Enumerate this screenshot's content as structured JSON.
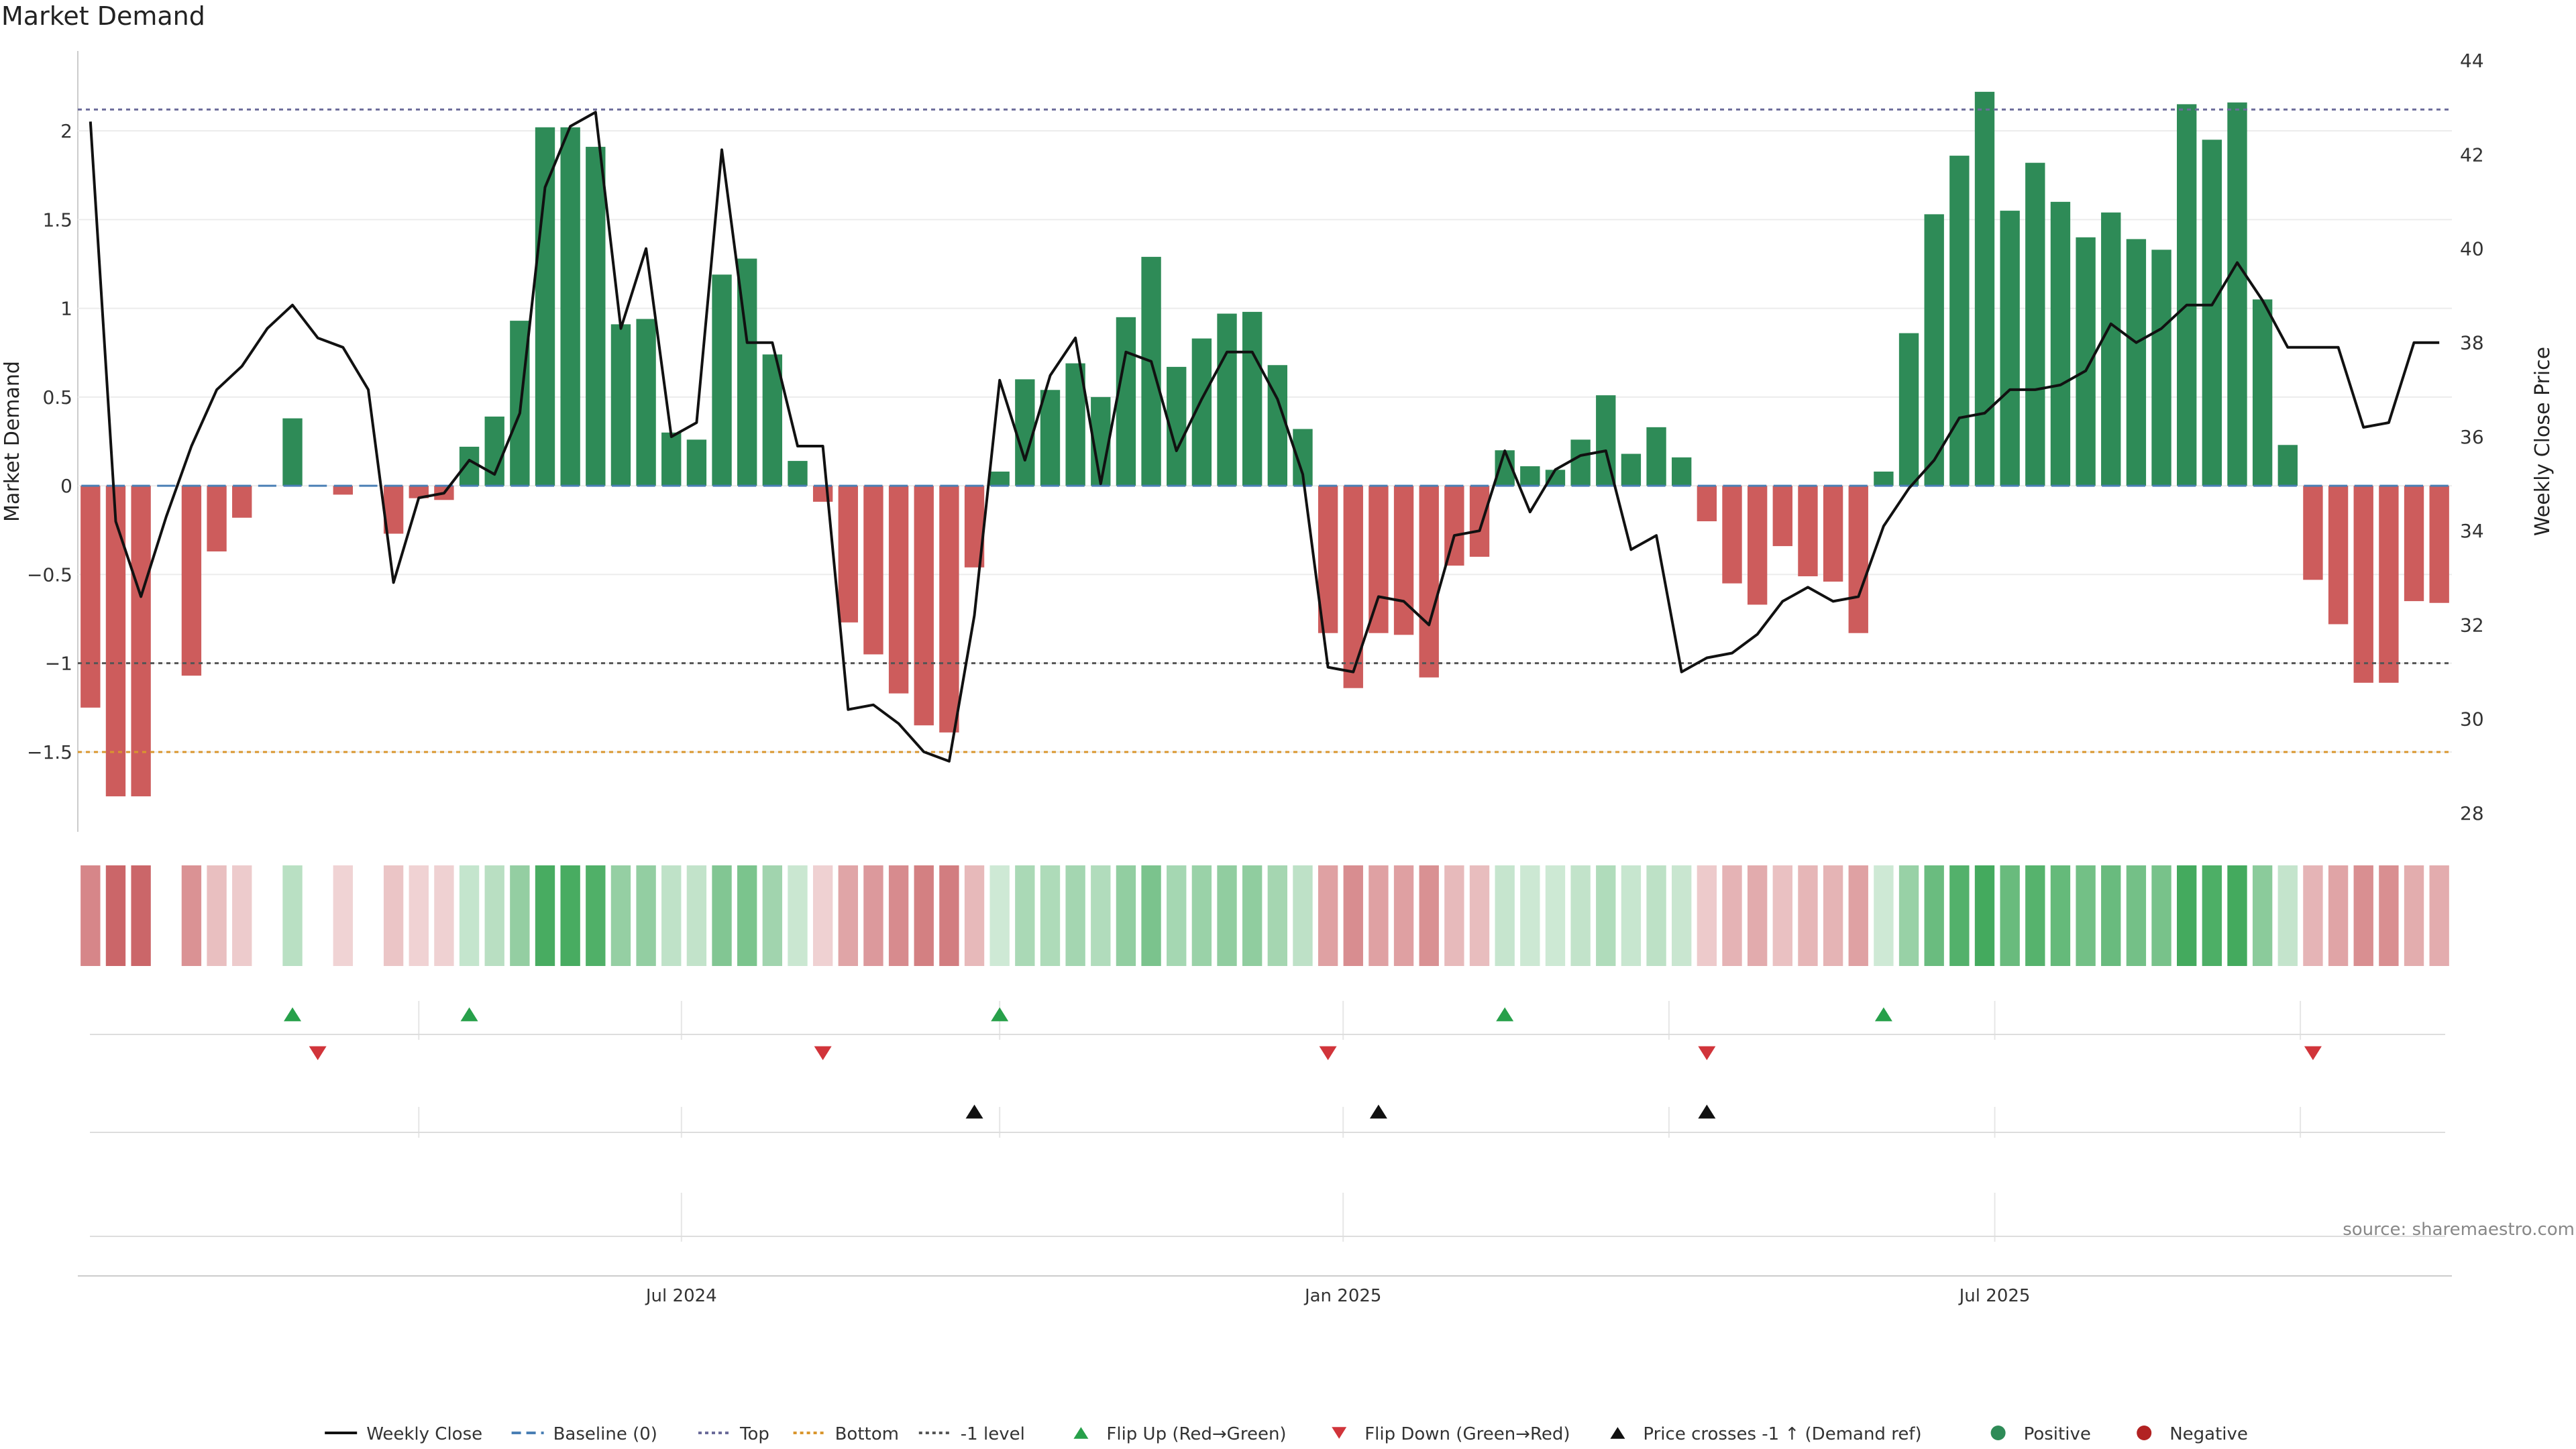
{
  "chart_data": {
    "type": "bar",
    "title": "Market Demand",
    "ylabel": "Market Demand",
    "y2label": "Weekly Close Price",
    "ylim": [
      -1.95,
      2.45
    ],
    "y2lim": [
      27.6,
      44.2
    ],
    "yticks": [
      "2",
      "1.5",
      "1",
      "0.5",
      "0",
      "−0.5",
      "−1",
      "−1.5"
    ],
    "ytick_values": [
      2,
      1.5,
      1,
      0.5,
      0,
      -0.5,
      -1,
      -1.5
    ],
    "y2ticks": [
      "44",
      "42",
      "40",
      "38",
      "36",
      "34",
      "32",
      "30",
      "28"
    ],
    "y2tick_values": [
      44,
      42,
      40,
      38,
      36,
      34,
      32,
      30,
      28
    ],
    "xticks": [
      "Jul 2024",
      "Jan 2025",
      "Jul 2025"
    ],
    "xtick_weeks": [
      23.4,
      49.6,
      75.4
    ],
    "reference_lines": [
      {
        "name": "Top",
        "value": 2.12,
        "color": "#6b6b9a"
      },
      {
        "name": "Bottom",
        "value": -1.5,
        "color": "#d9962e"
      },
      {
        "name": "-1 level",
        "value": -1.0,
        "color": "#555555"
      }
    ],
    "demand": [
      -1.25,
      -1.75,
      -1.75,
      0,
      -1.07,
      -0.37,
      -0.18,
      0,
      0.38,
      0,
      -0.05,
      0,
      -0.27,
      -0.07,
      -0.08,
      0.22,
      0.39,
      0.93,
      2.02,
      2.02,
      1.91,
      0.91,
      0.94,
      0.3,
      0.26,
      1.19,
      1.28,
      0.74,
      0.14,
      -0.09,
      -0.77,
      -0.95,
      -1.17,
      -1.35,
      -1.39,
      -0.46,
      0.08,
      0.6,
      0.54,
      0.69,
      0.5,
      0.95,
      1.29,
      0.67,
      0.83,
      0.97,
      0.98,
      0.68,
      0.32,
      -0.83,
      -1.14,
      -0.83,
      -0.84,
      -1.08,
      -0.45,
      -0.4,
      0.2,
      0.11,
      0.09,
      0.26,
      0.51,
      0.18,
      0.33,
      0.16,
      -0.2,
      -0.55,
      -0.67,
      -0.34,
      -0.51,
      -0.54,
      -0.83,
      0.08,
      0.86,
      1.53,
      1.86,
      2.22,
      1.55,
      1.82,
      1.6,
      1.4,
      1.54,
      1.39,
      1.33,
      2.15,
      1.95,
      2.16,
      1.05,
      0.23,
      -0.53,
      -0.78,
      -1.11,
      -1.11,
      -0.65,
      -0.66
    ],
    "price": [
      42.7,
      34.2,
      32.6,
      34.3,
      35.8,
      37.0,
      37.5,
      38.3,
      38.8,
      38.1,
      37.9,
      37.0,
      32.9,
      34.7,
      34.8,
      35.5,
      35.2,
      36.5,
      41.3,
      42.6,
      42.9,
      38.3,
      40.0,
      36.0,
      36.3,
      42.1,
      38.0,
      38.0,
      35.8,
      35.8,
      30.2,
      30.3,
      29.9,
      29.3,
      29.1,
      32.2,
      37.2,
      35.5,
      37.3,
      38.1,
      35.0,
      37.8,
      37.6,
      35.7,
      36.8,
      37.8,
      37.8,
      36.8,
      35.2,
      31.1,
      31.0,
      32.6,
      32.5,
      32.0,
      33.9,
      34.0,
      35.7,
      34.4,
      35.3,
      35.6,
      35.7,
      33.6,
      33.9,
      31.0,
      31.3,
      31.4,
      31.8,
      32.5,
      32.8,
      32.5,
      32.6,
      34.1,
      34.9,
      35.5,
      36.4,
      36.5,
      37.0,
      37.0,
      37.1,
      37.4,
      38.4,
      38.0,
      38.3,
      38.8,
      38.8,
      39.7,
      38.9,
      37.9,
      37.9,
      37.9,
      36.2,
      36.3,
      38.0,
      38.0
    ],
    "flip_up_weeks": [
      8,
      15,
      36,
      56,
      71
    ],
    "flip_down_weeks": [
      9,
      29,
      49,
      64,
      88
    ],
    "price_cross_weeks": [
      35,
      51,
      64
    ],
    "legend": [
      {
        "label": "Weekly Close",
        "kind": "line",
        "color": "#111111"
      },
      {
        "label": "Baseline (0)",
        "kind": "dash",
        "color": "#4a7fb5"
      },
      {
        "label": "Top",
        "kind": "dot",
        "color": "#6b6b9a"
      },
      {
        "label": "Bottom",
        "kind": "dot",
        "color": "#d9962e"
      },
      {
        "label": "-1 level",
        "kind": "dot",
        "color": "#555555"
      },
      {
        "label": "Flip Up (Red→Green)",
        "kind": "tri-up",
        "color": "#27a04a"
      },
      {
        "label": "Flip Down (Green→Red)",
        "kind": "tri-down",
        "color": "#d1343a"
      },
      {
        "label": "Price crosses -1 ↑ (Demand ref)",
        "kind": "tri-up",
        "color": "#111111"
      },
      {
        "label": "Positive",
        "kind": "circle",
        "color": "#2e8b57"
      },
      {
        "label": "Negative",
        "kind": "circle",
        "color": "#b22222"
      }
    ],
    "source": "source: sharemaestro.com"
  },
  "colors": {
    "positive": "#2e8b57",
    "negative": "#cd5c5c",
    "price": "#111111",
    "baseline": "#4a7fb5"
  }
}
